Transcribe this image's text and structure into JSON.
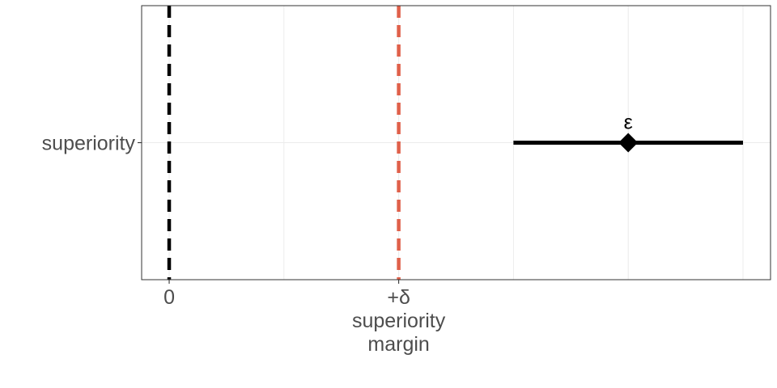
{
  "chart_data": {
    "type": "forest",
    "x_ticks": [
      {
        "value": 0,
        "lines": [
          "0"
        ]
      },
      {
        "value": 1,
        "lines": [
          "+δ",
          "superiority",
          "margin"
        ]
      }
    ],
    "xlim": [
      -0.12,
      2.62
    ],
    "y_categories": [
      "superiority"
    ],
    "reference_lines": [
      {
        "value": 0,
        "color": "#000000",
        "style": "dashed"
      },
      {
        "value": 1,
        "color": "#e0604a",
        "style": "dashed"
      }
    ],
    "intervals": [
      {
        "category": "superiority",
        "lower": 1.5,
        "estimate": 2.0,
        "upper": 2.5,
        "label": "ε"
      }
    ],
    "grid": true
  }
}
